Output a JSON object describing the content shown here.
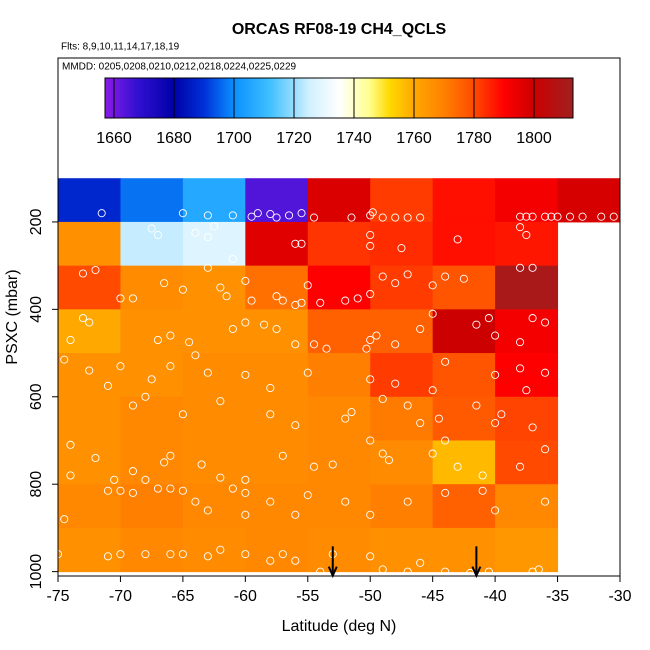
{
  "chart_data": {
    "type": "heatmap",
    "title": "ORCAS RF08-19 CH4_QCLS",
    "subtitle": "Flts: 8,9,10,11,14,17,18,19",
    "annotation": "MMDD: 0205,0208,0210,0212,0218,0224,0225,0229",
    "xlabel": "Latitude (deg N)",
    "ylabel": "PSXC (mbar)",
    "xlim": [
      -75,
      -30
    ],
    "xticks": [
      -75,
      -70,
      -65,
      -60,
      -55,
      -50,
      -45,
      -40,
      -35,
      -30
    ],
    "ylim": [
      1010,
      -175
    ],
    "yticks": [
      200,
      400,
      600,
      800,
      1000
    ],
    "x_edges": [
      -75,
      -70,
      -65,
      -60,
      -55,
      -50,
      -45,
      -40,
      -35,
      -30
    ],
    "y_edges": [
      100,
      200,
      300,
      400,
      500,
      600,
      700,
      800,
      900,
      1000
    ],
    "values": [
      [
        1688,
        1697,
        1706,
        1664,
        1797,
        1782,
        1788,
        1792,
        1798
      ],
      [
        1766,
        1724,
        1728,
        1796,
        1783,
        1784,
        1788,
        1787,
        null
      ],
      [
        1780,
        1767,
        1766,
        1773,
        1790,
        1782,
        1778,
        1810,
        null
      ],
      [
        1760,
        1766,
        1766,
        1766,
        1776,
        1776,
        1800,
        1792,
        null
      ],
      [
        1766,
        1766,
        1767,
        1767,
        1770,
        1782,
        1778,
        1790,
        null
      ],
      [
        1766,
        1768,
        1767,
        1767,
        1768,
        1771,
        1777,
        1781,
        null
      ],
      [
        1766,
        1768,
        1767,
        1767,
        1768,
        1767,
        1757,
        1780,
        null
      ],
      [
        1768,
        1770,
        1768,
        1768,
        1768,
        1770,
        1776,
        1768,
        null
      ],
      [
        1766,
        1768,
        1767,
        1768,
        1767,
        1766,
        1766,
        1764,
        null
      ]
    ],
    "colorbar_lim": [
      1657,
      1813
    ],
    "colorbar_ticks": [
      1660,
      1680,
      1700,
      1720,
      1740,
      1760,
      1780,
      1800
    ],
    "colorscale": [
      [
        1657,
        "#8b1be8"
      ],
      [
        1668,
        "#3010d0"
      ],
      [
        1680,
        "#0000a8"
      ],
      [
        1690,
        "#0030d8"
      ],
      [
        1700,
        "#0a90ff"
      ],
      [
        1712,
        "#40c0ff"
      ],
      [
        1725,
        "#d0f0ff"
      ],
      [
        1735,
        "#ffffff"
      ],
      [
        1745,
        "#ffff90"
      ],
      [
        1752,
        "#ffd800"
      ],
      [
        1760,
        "#ffa800"
      ],
      [
        1770,
        "#ff8000"
      ],
      [
        1780,
        "#ff4a00"
      ],
      [
        1790,
        "#ff0000"
      ],
      [
        1800,
        "#cc0000"
      ],
      [
        1813,
        "#a02020"
      ]
    ],
    "points": {
      "color": "#ffffff",
      "x": [
        -71.5,
        -65,
        -63,
        -62.5,
        -61,
        -59.5,
        -59,
        -58,
        -57.5,
        -56.5,
        -55.5,
        -54.5,
        -51.5,
        -50,
        -49.8,
        -49,
        -48,
        -47,
        -46,
        -38,
        -37.5,
        -37,
        -36,
        -35.5,
        -35,
        -34,
        -33,
        -31.5,
        -30.5,
        -67.5,
        -67,
        -63,
        -64,
        -55.5,
        -56,
        -50,
        -50,
        -47.5,
        -43,
        -37.5,
        -38,
        -72,
        -73,
        -61,
        -63,
        -60,
        -62,
        -61.5,
        -65,
        -69,
        -70,
        -66.5,
        -55,
        -55.5,
        -56,
        -54,
        -57,
        -52,
        -51,
        -50,
        -48,
        -49,
        -47,
        -45,
        -44,
        -42.5,
        -38,
        -37,
        -34.5,
        -57.5,
        -59.5,
        -73,
        -74,
        -72.5,
        -67,
        -66,
        -64.5,
        -61,
        -60,
        -58.5,
        -57.5,
        -56,
        -54.5,
        -53.5,
        -50.3,
        -50,
        -49.5,
        -48,
        -46,
        -45,
        -41.5,
        -40,
        -38,
        -37,
        -36,
        -40.5,
        -74.5,
        -72.5,
        -70,
        -67.5,
        -66,
        -64,
        -63,
        -60,
        -58,
        -55,
        -50,
        -48,
        -45,
        -44,
        -40,
        -38,
        -36,
        -37.5,
        -71,
        -68,
        -62,
        -58,
        -56,
        -52,
        -51.5,
        -49,
        -47,
        -44.5,
        -41.5,
        -39.5,
        -37,
        -40,
        -46,
        -44,
        -65,
        -69,
        -74,
        -74,
        -72,
        -69,
        -66,
        -63.5,
        -62,
        -60,
        -57,
        -54.5,
        -53,
        -49,
        -50,
        -48.5,
        -45,
        -43,
        -41,
        -38,
        -36,
        -70.5,
        -68,
        -66.5,
        -74.5,
        -71,
        -69,
        -67,
        -66,
        -65,
        -63,
        -61,
        -60,
        -58,
        -55,
        -52,
        -50,
        -47,
        -44,
        -41,
        -40,
        -36,
        -56,
        -60,
        -64,
        -70,
        -75,
        -71,
        -70,
        -68,
        -66,
        -65,
        -63,
        -62,
        -60,
        -58,
        -57,
        -56,
        -53,
        -50,
        -49,
        -47,
        -44,
        -42,
        -40.5,
        -37,
        -36.5,
        -54,
        -46
      ],
      "y": [
        180,
        180,
        185,
        210,
        185,
        188,
        180,
        182,
        190,
        185,
        180,
        190,
        190,
        185,
        178,
        190,
        190,
        190,
        190,
        188,
        188,
        188,
        188,
        188,
        188,
        188,
        188,
        188,
        188,
        215,
        230,
        235,
        225,
        250,
        250,
        230,
        255,
        260,
        240,
        230,
        212,
        310,
        318,
        285,
        305,
        335,
        350,
        370,
        355,
        375,
        375,
        340,
        345,
        385,
        390,
        385,
        380,
        380,
        375,
        365,
        340,
        325,
        320,
        345,
        325,
        330,
        305,
        305,
        395,
        370,
        380,
        420,
        470,
        430,
        470,
        460,
        475,
        445,
        430,
        435,
        445,
        480,
        480,
        490,
        490,
        470,
        460,
        480,
        445,
        410,
        435,
        460,
        475,
        420,
        430,
        420,
        515,
        540,
        530,
        560,
        530,
        505,
        545,
        550,
        580,
        545,
        560,
        570,
        585,
        520,
        550,
        535,
        545,
        585,
        575,
        600,
        610,
        640,
        665,
        650,
        635,
        605,
        620,
        650,
        620,
        640,
        670,
        660,
        660,
        700,
        640,
        620,
        710,
        780,
        740,
        770,
        735,
        755,
        785,
        790,
        735,
        760,
        755,
        730,
        700,
        745,
        730,
        760,
        780,
        760,
        720,
        790,
        790,
        750,
        880,
        815,
        820,
        810,
        810,
        815,
        860,
        810,
        820,
        840,
        825,
        840,
        870,
        840,
        820,
        815,
        860,
        840,
        870,
        870,
        840,
        815,
        960,
        965,
        960,
        960,
        960,
        960,
        965,
        950,
        960,
        975,
        960,
        975,
        960,
        965,
        995,
        1000,
        1000,
        1003,
        1000,
        1000,
        995,
        1000,
        980
      ]
    },
    "arrows": {
      "x": [
        -53,
        -41.5
      ],
      "y": [
        965,
        1000
      ]
    }
  }
}
